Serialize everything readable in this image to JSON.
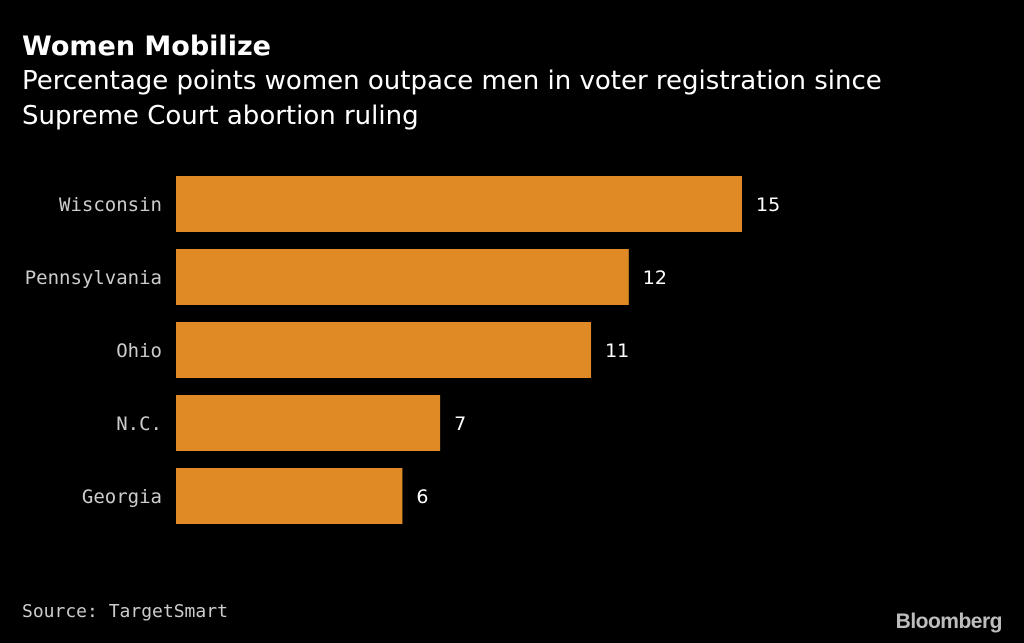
{
  "header": {
    "title": "Women Mobilize",
    "subtitle": "Percentage points women outpace men in voter registration since Supreme Court abortion ruling"
  },
  "footer": {
    "source": "Source: TargetSmart",
    "brand": "Bloomberg"
  },
  "colors": {
    "background": "#000000",
    "bar": "#df8a24",
    "text": "#ffffff",
    "muted_text": "#cccccc"
  },
  "chart_data": {
    "type": "bar",
    "orientation": "horizontal",
    "title": "Women Mobilize",
    "subtitle": "Percentage points women outpace men in voter registration since Supreme Court abortion ruling",
    "categories": [
      "Wisconsin",
      "Pennsylvania",
      "Ohio",
      "N.C.",
      "Georgia"
    ],
    "values": [
      15,
      12,
      11,
      7,
      6
    ],
    "data_labels": [
      "15",
      "12",
      "11",
      "7",
      "6"
    ],
    "xlabel": "",
    "ylabel": "",
    "xlim": [
      0,
      15
    ],
    "grid": false,
    "legend": "none"
  }
}
